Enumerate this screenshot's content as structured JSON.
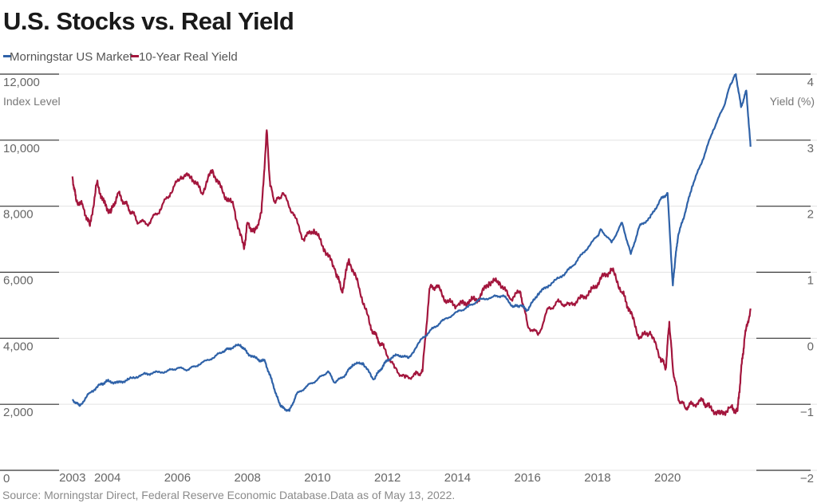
{
  "chart_data": {
    "type": "line",
    "title": "U.S. Stocks vs. Real Yield",
    "source": "Source: Morningstar Direct, Federal Reserve Economic Database.Data as of May 13, 2022.",
    "legend_position": "top-left",
    "grid": true,
    "x_range": [
      2002.8,
      2022.4
    ],
    "x_ticks": [
      "2003",
      "2004",
      "2006",
      "2008",
      "2010",
      "2012",
      "2014",
      "2016",
      "2018",
      "2020"
    ],
    "y_left": {
      "label": "Index Level",
      "range": [
        0,
        12000
      ],
      "ticks": [
        "0",
        "2,000",
        "4,000",
        "6,000",
        "8,000",
        "10,000",
        "12,000"
      ]
    },
    "y_right": {
      "label": "Yield (%)",
      "range": [
        -2,
        4
      ],
      "ticks": [
        "−2",
        "−1",
        "0",
        "1",
        "2",
        "3",
        "4"
      ]
    },
    "series": [
      {
        "name": "Morningstar US Market",
        "axis": "left",
        "color": "#2f62a8",
        "x": [
          2003.0,
          2003.2,
          2003.5,
          2003.8,
          2004.0,
          2004.3,
          2004.6,
          2005.0,
          2005.3,
          2005.7,
          2006.0,
          2006.3,
          2006.6,
          2007.0,
          2007.3,
          2007.5,
          2007.8,
          2008.0,
          2008.3,
          2008.5,
          2008.7,
          2008.9,
          2009.0,
          2009.2,
          2009.4,
          2009.7,
          2010.0,
          2010.3,
          2010.5,
          2010.8,
          2011.0,
          2011.3,
          2011.6,
          2011.8,
          2012.0,
          2012.3,
          2012.6,
          2013.0,
          2013.3,
          2013.6,
          2014.0,
          2014.3,
          2014.6,
          2015.0,
          2015.3,
          2015.6,
          2015.8,
          2016.0,
          2016.3,
          2016.6,
          2017.0,
          2017.3,
          2017.6,
          2018.0,
          2018.1,
          2018.4,
          2018.7,
          2018.95,
          2019.2,
          2019.5,
          2019.8,
          2020.0,
          2020.15,
          2020.22,
          2020.3,
          2020.5,
          2020.7,
          2021.0,
          2021.3,
          2021.6,
          2021.8,
          2021.95,
          2022.1,
          2022.25,
          2022.37
        ],
        "values": [
          2150,
          1950,
          2350,
          2600,
          2700,
          2650,
          2750,
          2900,
          2950,
          3000,
          3100,
          3050,
          3200,
          3400,
          3600,
          3700,
          3800,
          3550,
          3350,
          3300,
          2700,
          2050,
          1900,
          1800,
          2300,
          2550,
          2750,
          3000,
          2650,
          2900,
          3200,
          3250,
          2750,
          3050,
          3350,
          3500,
          3400,
          4000,
          4300,
          4550,
          4800,
          4950,
          5150,
          5250,
          5300,
          4950,
          5000,
          4850,
          5350,
          5600,
          5900,
          6200,
          6600,
          7100,
          7300,
          6900,
          7500,
          6550,
          7400,
          7650,
          8200,
          8400,
          5600,
          6400,
          7100,
          7800,
          8600,
          9400,
          10300,
          11000,
          11700,
          12000,
          11000,
          11500,
          9800
        ]
      },
      {
        "name": "10-Year Real Yield",
        "axis": "right",
        "color": "#a3163d",
        "x": [
          2003.0,
          2003.1,
          2003.3,
          2003.5,
          2003.7,
          2003.9,
          2004.1,
          2004.3,
          2004.5,
          2004.7,
          2004.9,
          2005.2,
          2005.5,
          2005.8,
          2006.1,
          2006.4,
          2006.7,
          2007.0,
          2007.3,
          2007.6,
          2007.9,
          2008.0,
          2008.2,
          2008.4,
          2008.55,
          2008.65,
          2008.8,
          2009.0,
          2009.3,
          2009.6,
          2009.9,
          2010.2,
          2010.5,
          2010.7,
          2010.9,
          2011.2,
          2011.5,
          2011.7,
          2011.9,
          2012.2,
          2012.5,
          2012.8,
          2013.0,
          2013.2,
          2013.4,
          2013.7,
          2014.0,
          2014.3,
          2014.6,
          2014.9,
          2015.2,
          2015.5,
          2015.8,
          2016.0,
          2016.3,
          2016.6,
          2016.9,
          2017.2,
          2017.5,
          2017.8,
          2018.1,
          2018.4,
          2018.7,
          2018.9,
          2019.2,
          2019.5,
          2019.8,
          2019.95,
          2020.05,
          2020.15,
          2020.3,
          2020.5,
          2020.7,
          2021.0,
          2021.2,
          2021.5,
          2021.8,
          2022.0,
          2022.1,
          2022.2,
          2022.37
        ],
        "values": [
          2.45,
          2.1,
          2.0,
          1.7,
          2.35,
          2.05,
          1.9,
          2.2,
          2.05,
          1.9,
          1.75,
          1.75,
          1.95,
          2.2,
          2.45,
          2.45,
          2.2,
          2.55,
          2.2,
          2.0,
          1.35,
          1.75,
          1.6,
          1.9,
          3.15,
          2.3,
          2.05,
          2.2,
          1.9,
          1.5,
          1.65,
          1.35,
          1.05,
          0.7,
          1.2,
          0.75,
          0.2,
          0.0,
          -0.15,
          -0.45,
          -0.6,
          -0.55,
          -0.5,
          0.75,
          0.8,
          0.55,
          0.5,
          0.55,
          0.6,
          0.85,
          0.85,
          0.6,
          0.7,
          0.2,
          0.05,
          0.45,
          0.55,
          0.5,
          0.6,
          0.7,
          0.9,
          1.05,
          0.7,
          0.45,
          0.0,
          0.1,
          -0.3,
          -0.45,
          0.25,
          -0.45,
          -0.9,
          -1.05,
          -1.0,
          -0.95,
          -1.05,
          -1.15,
          -1.05,
          -1.1,
          -0.5,
          0.0,
          0.45
        ]
      }
    ]
  }
}
